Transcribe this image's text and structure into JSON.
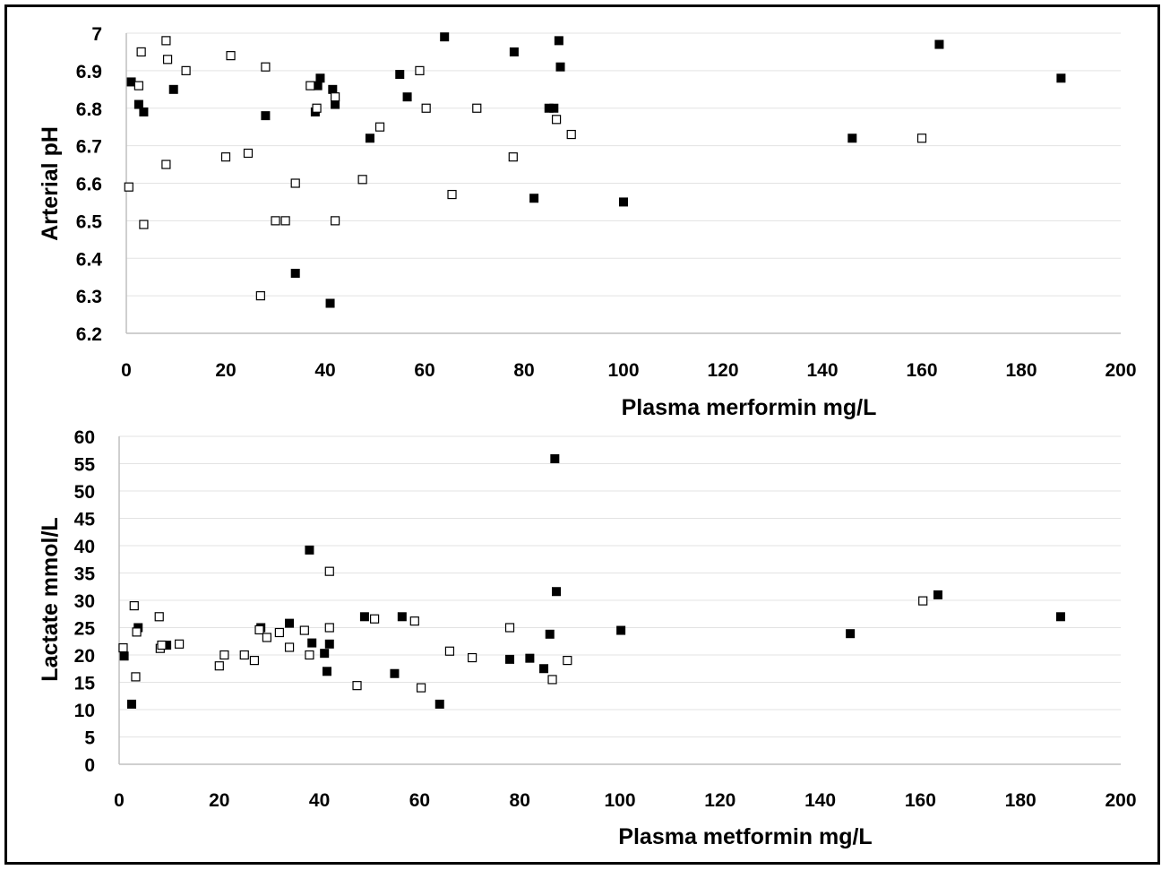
{
  "chart_data": [
    {
      "type": "scatter",
      "title": "",
      "xlabel": "Plasma merformin mg/L",
      "ylabel": "Arterial pH",
      "xlim": [
        0,
        200
      ],
      "ylim": [
        6.2,
        7.0
      ],
      "x_ticks": [
        "0",
        "20",
        "40",
        "60",
        "80",
        "100",
        "120",
        "140",
        "160",
        "180",
        "200"
      ],
      "y_ticks": [
        "6.2",
        "6.3",
        "6.4",
        "6.5",
        "6.6",
        "6.7",
        "6.8",
        "6.9",
        "7"
      ],
      "grid": true,
      "legend": "none",
      "series": [
        {
          "marker": "filled-square",
          "color": "#000000",
          "points": [
            [
              1,
              6.87
            ],
            [
              2.5,
              6.81
            ],
            [
              3.5,
              6.79
            ],
            [
              9.5,
              6.85
            ],
            [
              28,
              6.78
            ],
            [
              34,
              6.36
            ],
            [
              38,
              6.79
            ],
            [
              38.5,
              6.86
            ],
            [
              39,
              6.88
            ],
            [
              41,
              6.28
            ],
            [
              41.5,
              6.85
            ],
            [
              42,
              6.81
            ],
            [
              49,
              6.72
            ],
            [
              55,
              6.89
            ],
            [
              56.5,
              6.83
            ],
            [
              64,
              6.99
            ],
            [
              78,
              6.95
            ],
            [
              82,
              6.56
            ],
            [
              85,
              6.8
            ],
            [
              86,
              6.8
            ],
            [
              87,
              6.98
            ],
            [
              87.3,
              6.91
            ],
            [
              100,
              6.55
            ],
            [
              146,
              6.72
            ],
            [
              163.5,
              6.97
            ],
            [
              188,
              6.88
            ]
          ]
        },
        {
          "marker": "open-square",
          "color": "#000000",
          "points": [
            [
              0.5,
              6.59
            ],
            [
              2.5,
              6.86
            ],
            [
              3,
              6.95
            ],
            [
              3.5,
              6.49
            ],
            [
              8,
              6.65
            ],
            [
              8,
              6.98
            ],
            [
              8.3,
              6.93
            ],
            [
              12,
              6.9
            ],
            [
              20,
              6.67
            ],
            [
              21,
              6.94
            ],
            [
              24.5,
              6.68
            ],
            [
              27,
              6.3
            ],
            [
              28,
              6.91
            ],
            [
              30,
              6.5
            ],
            [
              32,
              6.5
            ],
            [
              34,
              6.6
            ],
            [
              37,
              6.86
            ],
            [
              38.3,
              6.8
            ],
            [
              42,
              6.83
            ],
            [
              42,
              6.5
            ],
            [
              47.5,
              6.61
            ],
            [
              51,
              6.75
            ],
            [
              59,
              6.9
            ],
            [
              60.3,
              6.8
            ],
            [
              65.5,
              6.57
            ],
            [
              70.5,
              6.8
            ],
            [
              77.8,
              6.67
            ],
            [
              86.5,
              6.77
            ],
            [
              89.5,
              6.73
            ],
            [
              160,
              6.72
            ]
          ]
        }
      ]
    },
    {
      "type": "scatter",
      "title": "",
      "xlabel": "Plasma metformin mg/L",
      "ylabel": "Lactate mmol/L",
      "xlim": [
        0,
        200
      ],
      "ylim": [
        0,
        60
      ],
      "x_ticks": [
        "0",
        "20",
        "40",
        "60",
        "80",
        "100",
        "120",
        "140",
        "160",
        "180",
        "200"
      ],
      "y_ticks": [
        "0",
        "5",
        "10",
        "15",
        "20",
        "25",
        "30",
        "35",
        "40",
        "45",
        "50",
        "55",
        "60"
      ],
      "grid": true,
      "legend": "none",
      "series": [
        {
          "marker": "filled-square",
          "color": "#000000",
          "points": [
            [
              1,
              19.8
            ],
            [
              2.5,
              11
            ],
            [
              3.8,
              25
            ],
            [
              9.5,
              21.8
            ],
            [
              28.3,
              25
            ],
            [
              34,
              25.8
            ],
            [
              38,
              39.2
            ],
            [
              38.5,
              22.2
            ],
            [
              41,
              20.3
            ],
            [
              41.5,
              17
            ],
            [
              42,
              22
            ],
            [
              49,
              27
            ],
            [
              55,
              16.6
            ],
            [
              56.5,
              27
            ],
            [
              64,
              11
            ],
            [
              78,
              19.2
            ],
            [
              82,
              19.4
            ],
            [
              84.8,
              17.5
            ],
            [
              86,
              23.8
            ],
            [
              87,
              55.9
            ],
            [
              87.3,
              31.6
            ],
            [
              100.2,
              24.5
            ],
            [
              146,
              23.9
            ],
            [
              163.5,
              31
            ],
            [
              188,
              27
            ]
          ]
        },
        {
          "marker": "open-square",
          "color": "#000000",
          "points": [
            [
              0.8,
              21.3
            ],
            [
              3,
              29
            ],
            [
              3.3,
              16
            ],
            [
              3.5,
              24.2
            ],
            [
              8,
              27
            ],
            [
              8.2,
              21.2
            ],
            [
              8.5,
              21.8
            ],
            [
              12,
              22
            ],
            [
              20,
              18
            ],
            [
              21,
              20
            ],
            [
              25,
              20
            ],
            [
              27,
              19
            ],
            [
              28,
              24.6
            ],
            [
              29.5,
              23.2
            ],
            [
              32,
              24.1
            ],
            [
              34,
              21.4
            ],
            [
              37,
              24.5
            ],
            [
              38,
              20
            ],
            [
              42,
              35.3
            ],
            [
              42,
              25
            ],
            [
              47.5,
              14.4
            ],
            [
              51,
              26.6
            ],
            [
              59,
              26.2
            ],
            [
              60.3,
              14
            ],
            [
              66,
              20.7
            ],
            [
              70.5,
              19.5
            ],
            [
              78,
              25
            ],
            [
              86.5,
              15.5
            ],
            [
              89.5,
              19
            ],
            [
              160.5,
              29.9
            ]
          ]
        }
      ]
    }
  ]
}
